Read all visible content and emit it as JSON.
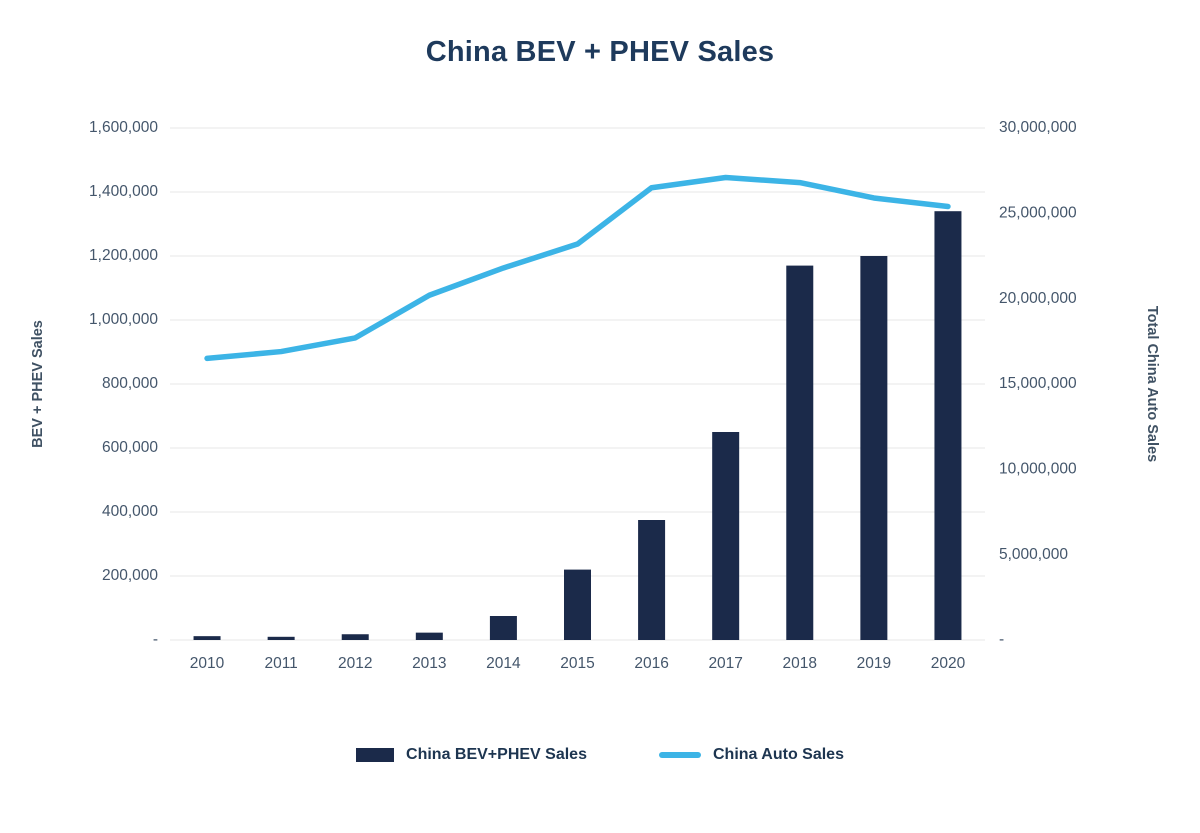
{
  "chart_data": {
    "type": "combo-bar-line",
    "title": "China BEV + PHEV Sales",
    "ylabel_left": "BEV + PHEV Sales",
    "ylabel_right": "Total China Auto Sales",
    "categories": [
      "2010",
      "2011",
      "2012",
      "2013",
      "2014",
      "2015",
      "2016",
      "2017",
      "2018",
      "2019",
      "2020"
    ],
    "series": [
      {
        "name": "China BEV+PHEV Sales",
        "type": "bar",
        "axis": "left",
        "color": "#1b2a4a",
        "values": [
          12000,
          10000,
          18000,
          23000,
          75000,
          220000,
          375000,
          650000,
          1170000,
          1200000,
          1340000
        ]
      },
      {
        "name": "China Auto Sales",
        "type": "line",
        "axis": "right",
        "color": "#3cb4e6",
        "values": [
          16500000,
          16900000,
          17700000,
          20200000,
          21800000,
          23200000,
          26500000,
          27100000,
          26800000,
          25900000,
          25400000
        ]
      }
    ],
    "y_left": {
      "min": 0,
      "max": 1600000,
      "step": 200000,
      "zero_label": "-",
      "tick_labels": [
        "-",
        "200,000",
        "400,000",
        "600,000",
        "800,000",
        "1,000,000",
        "1,200,000",
        "1,400,000",
        "1,600,000"
      ]
    },
    "y_right": {
      "min": 0,
      "max": 30000000,
      "step": 5000000,
      "zero_label": "-",
      "tick_labels": [
        "-",
        "5,000,000",
        "10,000,000",
        "15,000,000",
        "20,000,000",
        "25,000,000",
        "30,000,000"
      ]
    },
    "grid": true,
    "legend_position": "bottom",
    "colors": {
      "title": "#1e3a5c",
      "tick_text": "#44566b",
      "gridline": "#e7e7e7",
      "axis_title": "#3f5163",
      "legend_text": "#1d3550"
    }
  }
}
